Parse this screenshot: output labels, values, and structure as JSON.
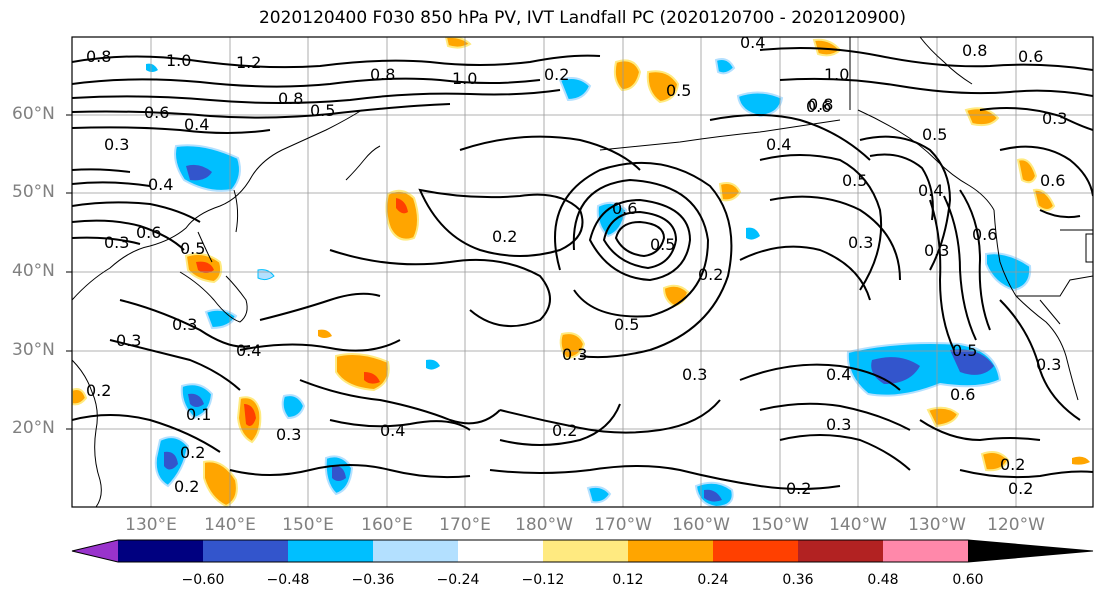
{
  "title": "2020120400 F030 850 hPa PV, IVT Landfall PC (2020120700 - 2020120900)",
  "lat_labels": [
    "60°N",
    "50°N",
    "40°N",
    "30°N",
    "20°N"
  ],
  "lon_labels": [
    "130°E",
    "140°E",
    "150°E",
    "160°E",
    "170°E",
    "180°W",
    "170°W",
    "160°W",
    "150°W",
    "140°W",
    "130°W",
    "120°W"
  ],
  "colorbar": {
    "colors": [
      "#9933cc",
      "#000080",
      "#3355cc",
      "#00bfff",
      "#b3e0ff",
      "#ffffff",
      "#ffea80",
      "#ffa500",
      "#ff4000",
      "#b22222",
      "#ff88aa"
    ],
    "tick_labels": [
      "−0.60",
      "−0.48",
      "−0.36",
      "−0.24",
      "−0.12",
      "0.12",
      "0.24",
      "0.36",
      "0.48",
      "0.60"
    ]
  },
  "contour_labels": [
    "0.8",
    "1.0",
    "1.2",
    "0.8",
    "0.5",
    "0.6",
    "0.4",
    "0.3",
    "0.4",
    "0.5",
    "0.3",
    "0.6",
    "0.3",
    "0.2",
    "0.3",
    "0.4",
    "0.2",
    "0.1",
    "0.3",
    "0.2",
    "0.4",
    "0.2",
    "0.8",
    "1.0",
    "0.2",
    "0.6",
    "0.5",
    "0.5",
    "0.2",
    "0.3",
    "0.3",
    "0.2",
    "0.2",
    "0.4",
    "0.8",
    "0.6",
    "0.4",
    "0.5",
    "1.0",
    "0.8",
    "0.6",
    "0.3",
    "0.5",
    "0.4",
    "0.5",
    "0.3",
    "0.6",
    "0.6",
    "0.3",
    "0.2",
    "0.2",
    "0.3",
    "0.5",
    "0.3",
    "0.4",
    "0.6"
  ]
}
